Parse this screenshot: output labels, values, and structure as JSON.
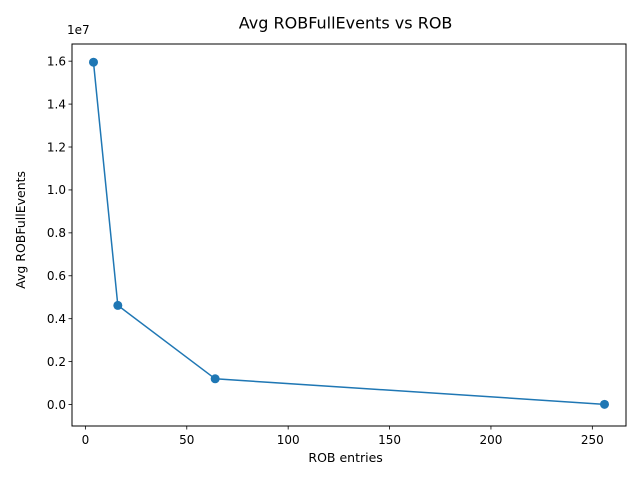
{
  "chart_data": {
    "type": "line",
    "title": "Avg ROBFullEvents vs ROB",
    "xlabel": "ROB entries",
    "ylabel": "Avg ROBFullEvents",
    "y_offset_label": "1e7",
    "xlim": [
      -6.6,
      266.6
    ],
    "ylim": [
      -1000000,
      16800000
    ],
    "x_ticks": [
      0,
      50,
      100,
      150,
      200,
      250
    ],
    "x_tick_labels": [
      "0",
      "50",
      "100",
      "150",
      "200",
      "250"
    ],
    "y_ticks": [
      0,
      2000000,
      4000000,
      6000000,
      8000000,
      10000000,
      12000000,
      14000000,
      16000000
    ],
    "y_tick_labels": [
      "0.0",
      "0.2",
      "0.4",
      "0.6",
      "0.8",
      "1.0",
      "1.2",
      "1.4",
      "1.6"
    ],
    "grid": false,
    "series": [
      {
        "color": "#1f77b4",
        "marker": "circle",
        "x": [
          4,
          16,
          64,
          256
        ],
        "y": [
          15950000,
          4620000,
          1200000,
          10000
        ]
      }
    ]
  }
}
